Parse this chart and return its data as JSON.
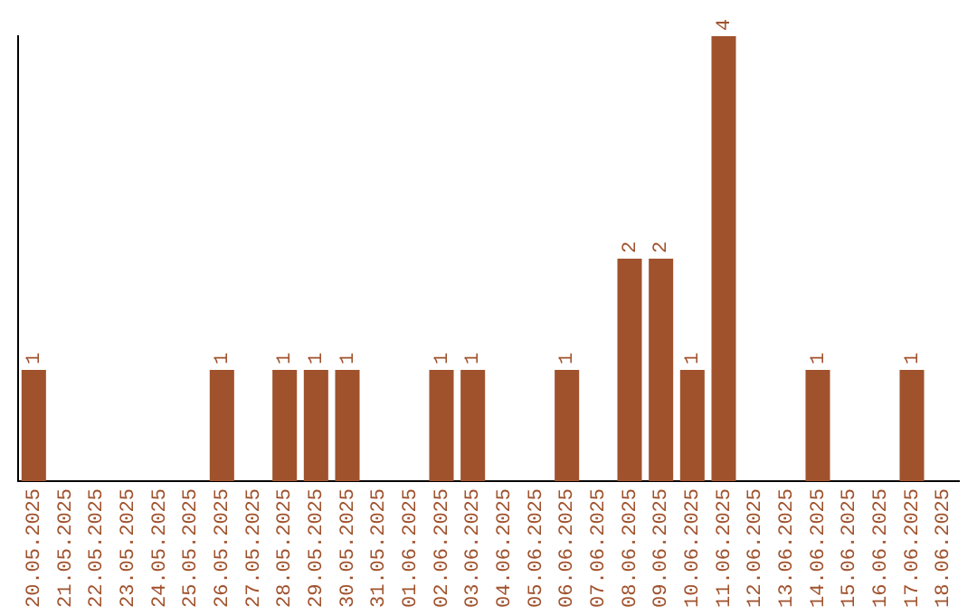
{
  "chart_data": {
    "type": "bar",
    "categories": [
      "20.05.2025",
      "21.05.2025",
      "22.05.2025",
      "23.05.2025",
      "24.05.2025",
      "25.05.2025",
      "26.05.2025",
      "27.05.2025",
      "28.05.2025",
      "29.05.2025",
      "30.05.2025",
      "31.05.2025",
      "01.06.2025",
      "02.06.2025",
      "03.06.2025",
      "04.06.2025",
      "05.06.2025",
      "06.06.2025",
      "07.06.2025",
      "08.06.2025",
      "09.06.2025",
      "10.06.2025",
      "11.06.2025",
      "12.06.2025",
      "13.06.2025",
      "14.06.2025",
      "15.06.2025",
      "16.06.2025",
      "17.06.2025",
      "18.06.2025"
    ],
    "values": [
      1,
      0,
      0,
      0,
      0,
      0,
      1,
      0,
      1,
      1,
      1,
      0,
      0,
      1,
      1,
      0,
      0,
      1,
      0,
      2,
      2,
      1,
      4,
      0,
      0,
      1,
      0,
      0,
      1,
      0
    ],
    "value_labels": [
      "1",
      null,
      null,
      null,
      null,
      null,
      "1",
      null,
      "1",
      "1",
      "1",
      null,
      null,
      "1",
      "1",
      null,
      null,
      "1",
      null,
      "2",
      "2",
      "1",
      "4",
      null,
      null,
      "1",
      null,
      null,
      "1",
      null
    ],
    "color": "#a0522d",
    "grid": false,
    "legend": false,
    "tick_labels": "x"
  }
}
